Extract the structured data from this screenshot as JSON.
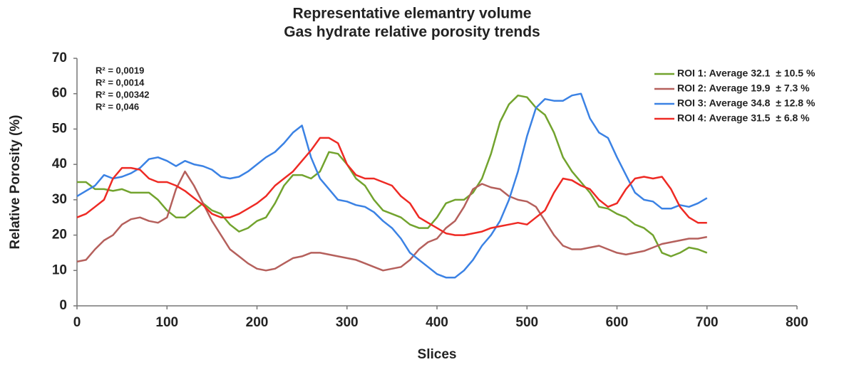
{
  "chart_data": {
    "type": "line",
    "title": "Representative elemantry volume",
    "subtitle": "Gas hydrate relative porosity trends",
    "x_label": "Slices",
    "y_label": "Relative Porosity (%)",
    "xlim": [
      0,
      800
    ],
    "xticks": [
      0,
      100,
      200,
      300,
      400,
      500,
      600,
      700,
      800
    ],
    "ylim": [
      0,
      70
    ],
    "yticks": [
      0,
      10,
      20,
      30,
      40,
      50,
      60,
      70
    ],
    "grid": false,
    "legend": "upper right",
    "annotations": [
      {
        "text": "R² = 0,0019",
        "color": "#72a32e"
      },
      {
        "text": "R² = 0,0014",
        "color": "#c0282d"
      },
      {
        "text": "R² = 0,00342",
        "color": "#3b82e4"
      },
      {
        "text": "R² = 0,046",
        "color": "#ee2a24"
      }
    ],
    "x": [
      0,
      10,
      20,
      30,
      40,
      50,
      60,
      70,
      80,
      90,
      100,
      110,
      120,
      130,
      140,
      150,
      160,
      170,
      180,
      190,
      200,
      210,
      220,
      230,
      240,
      250,
      260,
      270,
      280,
      290,
      300,
      310,
      320,
      330,
      340,
      350,
      360,
      370,
      380,
      390,
      400,
      410,
      420,
      430,
      440,
      450,
      460,
      470,
      480,
      490,
      500,
      510,
      520,
      530,
      540,
      550,
      560,
      570,
      580,
      590,
      600,
      610,
      620,
      630,
      640,
      650,
      660,
      670,
      680,
      690,
      700
    ],
    "series": [
      {
        "name": "ROI 1: Average 32.1  ± 10.5 %",
        "color": "#72a32e",
        "values": [
          35,
          35,
          33,
          33,
          32.5,
          33,
          32,
          32,
          32,
          30,
          27,
          25,
          25,
          27,
          29,
          27,
          26,
          23,
          21,
          22,
          24,
          25,
          29,
          34,
          37,
          37,
          36,
          38,
          43.5,
          43,
          40,
          36,
          34,
          30,
          27,
          26,
          25,
          23,
          22,
          22,
          25,
          29,
          30,
          30,
          32,
          36,
          43,
          52,
          57,
          59.5,
          59,
          56,
          54,
          49,
          42,
          38,
          35,
          32,
          28,
          27.5,
          26,
          25,
          23,
          22,
          20,
          15,
          14,
          15,
          16.5,
          16,
          15
        ]
      },
      {
        "name": "ROI 2: Average 19.9  ± 7.3 %",
        "color": "#b5605c",
        "values": [
          12.5,
          13,
          16,
          18.5,
          20,
          23,
          24.5,
          25,
          24,
          23.5,
          25,
          33,
          38,
          34,
          29,
          24,
          20,
          16,
          14,
          12,
          10.5,
          10,
          10.5,
          12,
          13.5,
          14,
          15,
          15,
          14.5,
          14,
          13.5,
          13,
          12,
          11,
          10,
          10.5,
          11,
          13,
          16,
          18,
          19,
          22,
          24,
          28,
          33,
          34.5,
          33.5,
          33,
          31,
          30,
          29.5,
          28,
          24,
          20,
          17,
          16,
          16,
          16.5,
          17,
          16,
          15,
          14.5,
          15,
          15.5,
          16.5,
          17.5,
          18,
          18.5,
          19,
          19,
          19.5
        ]
      },
      {
        "name": "ROI 3: Average 34.8  ± 12.8 %",
        "color": "#3b82e4",
        "values": [
          31,
          32.5,
          34,
          37,
          36,
          36.5,
          37.5,
          39,
          41.5,
          42,
          41,
          39.5,
          41,
          40,
          39.5,
          38.5,
          36.5,
          36,
          36.5,
          38,
          40,
          42,
          43.5,
          46,
          49,
          51,
          42,
          36,
          33,
          30,
          29.5,
          28.5,
          28,
          26.5,
          24,
          22,
          19,
          15,
          13,
          11,
          9,
          8,
          8,
          10,
          13,
          17,
          20,
          24,
          30,
          38,
          48,
          56,
          58.5,
          58,
          58,
          59.5,
          60,
          53,
          49,
          47.5,
          42,
          37,
          32,
          30,
          29.5,
          27.5,
          27.5,
          28.5,
          28,
          29,
          30.5
        ]
      },
      {
        "name": "ROI 4: Average 31.5  ± 6.8 %",
        "color": "#ee2a24",
        "values": [
          25,
          26,
          28,
          30,
          36,
          39,
          39,
          38.5,
          36,
          35,
          35,
          34,
          32.5,
          30.5,
          28.5,
          26,
          25,
          25,
          26,
          27.5,
          29,
          31,
          34,
          36,
          38,
          41,
          44,
          47.5,
          47.5,
          46,
          40,
          37,
          36,
          36,
          35,
          34,
          31,
          29,
          25,
          23.5,
          22,
          20.5,
          20,
          20,
          20.5,
          21,
          22,
          22.5,
          23,
          23.5,
          23,
          25,
          27,
          32,
          36,
          35.5,
          34,
          33,
          30,
          28,
          29,
          33,
          36,
          36.5,
          36,
          36.5,
          33,
          28,
          25,
          23.5,
          23.5
        ]
      }
    ]
  }
}
